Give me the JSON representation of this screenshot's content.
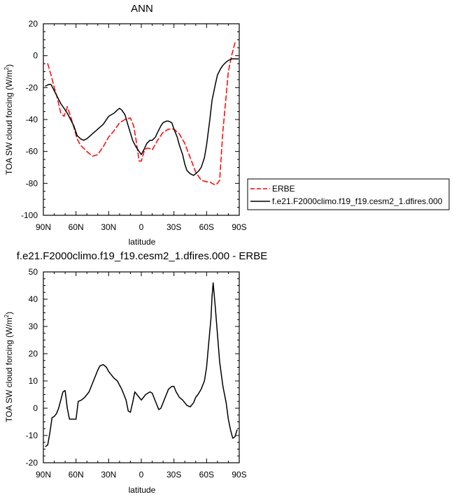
{
  "chart_data": [
    {
      "type": "line",
      "title": "ANN",
      "xlabel": "latitude",
      "ylabel_main": "TOA SW cloud forcing (W/m",
      "ylabel_sup": "2",
      "ylabel_close": ")",
      "xlim": [
        90,
        -90
      ],
      "ylim": [
        -100,
        20
      ],
      "xticks": [
        {
          "value": 90,
          "label": "90N"
        },
        {
          "value": 60,
          "label": "60N"
        },
        {
          "value": 30,
          "label": "30N"
        },
        {
          "value": 0,
          "label": "0"
        },
        {
          "value": -30,
          "label": "30S"
        },
        {
          "value": -60,
          "label": "60S"
        },
        {
          "value": -90,
          "label": "90S"
        }
      ],
      "yticks": [
        20,
        0,
        -20,
        -40,
        -60,
        -80,
        -100
      ],
      "grid": false,
      "legend_position": "right",
      "series": [
        {
          "name": "ERBE",
          "color": "#ff0000",
          "dash": "dashed",
          "x": [
            86,
            83,
            80,
            77,
            74,
            71,
            68,
            65,
            62,
            59,
            56,
            50,
            45,
            40,
            35,
            30,
            25,
            20,
            15,
            10,
            7,
            5,
            2,
            0,
            -3,
            -5,
            -7,
            -10,
            -15,
            -20,
            -25,
            -30,
            -35,
            -40,
            -45,
            -50,
            -55,
            -60,
            -63,
            -65,
            -68,
            -70,
            -72,
            -75,
            -78,
            -80,
            -83,
            -86,
            -88
          ],
          "y": [
            -5,
            -12,
            -20,
            -27,
            -36,
            -38,
            -32,
            -38,
            -45,
            -52,
            -56,
            -60,
            -63,
            -62,
            -57,
            -51,
            -47,
            -42,
            -40,
            -39,
            -44,
            -52,
            -66,
            -66,
            -59,
            -58,
            -58,
            -59,
            -53,
            -48,
            -46,
            -46,
            -49,
            -55,
            -64,
            -73,
            -78,
            -79,
            -79,
            -80,
            -81,
            -80,
            -78,
            -47,
            -25,
            -10,
            0,
            8,
            9
          ]
        },
        {
          "name": "f.e21.F2000climo.f19_f19.cesm2_1.dfires.000",
          "color": "#000000",
          "dash": "solid",
          "x": [
            88,
            85,
            83,
            80,
            77,
            74,
            71,
            68,
            65,
            62,
            59,
            56,
            53,
            50,
            45,
            40,
            35,
            30,
            25,
            22,
            20,
            18,
            15,
            12,
            8,
            5,
            2,
            0,
            -3,
            -5,
            -8,
            -10,
            -13,
            -15,
            -18,
            -20,
            -23,
            -25,
            -28,
            -30,
            -33,
            -35,
            -38,
            -40,
            -42,
            -45,
            -48,
            -50,
            -53,
            -55,
            -58,
            -60,
            -63,
            -65,
            -68,
            -70,
            -73,
            -75,
            -78,
            -80,
            -83,
            -86,
            -89
          ],
          "y": [
            -19,
            -18,
            -18,
            -22,
            -26,
            -30,
            -33,
            -36,
            -40,
            -44,
            -50,
            -52,
            -53,
            -52,
            -49,
            -46,
            -43,
            -38,
            -36,
            -34,
            -33,
            -34,
            -37,
            -44,
            -53,
            -57,
            -60,
            -62,
            -58,
            -55,
            -53,
            -53,
            -51,
            -48,
            -44,
            -42,
            -41,
            -41,
            -42,
            -46,
            -51,
            -56,
            -62,
            -68,
            -72,
            -74,
            -75,
            -74,
            -72,
            -70,
            -64,
            -56,
            -40,
            -28,
            -18,
            -12,
            -8,
            -6,
            -4,
            -3,
            -2,
            -2,
            -2
          ]
        }
      ]
    },
    {
      "type": "line",
      "title": "f.e21.F2000climo.f19_f19.cesm2_1.dfires.000 - ERBE",
      "xlabel": "latitude",
      "ylabel_main": "TOA SW cloud forcing (W/m",
      "ylabel_sup": "2",
      "ylabel_close": ")",
      "xlim": [
        90,
        -90
      ],
      "ylim": [
        -20,
        50
      ],
      "xticks": [
        {
          "value": 90,
          "label": "90N"
        },
        {
          "value": 60,
          "label": "60N"
        },
        {
          "value": 30,
          "label": "30N"
        },
        {
          "value": 0,
          "label": "0"
        },
        {
          "value": -30,
          "label": "30S"
        },
        {
          "value": -60,
          "label": "60S"
        },
        {
          "value": -90,
          "label": "90S"
        }
      ],
      "yticks": [
        50,
        40,
        30,
        20,
        10,
        0,
        -10,
        -20
      ],
      "grid": false,
      "series": [
        {
          "name": "",
          "color": "#000000",
          "dash": "solid",
          "x": [
            88,
            86,
            84,
            82,
            80,
            78,
            76,
            74,
            72,
            70,
            68,
            66,
            64,
            62,
            60,
            58,
            55,
            52,
            50,
            48,
            45,
            43,
            40,
            38,
            35,
            32,
            30,
            28,
            25,
            22,
            20,
            18,
            16,
            14,
            12,
            10,
            8,
            6,
            4,
            2,
            0,
            -2,
            -4,
            -6,
            -8,
            -10,
            -12,
            -14,
            -16,
            -18,
            -20,
            -22,
            -25,
            -28,
            -30,
            -32,
            -35,
            -38,
            -40,
            -42,
            -45,
            -48,
            -50,
            -52,
            -55,
            -58,
            -60,
            -62,
            -64,
            -65,
            -66,
            -68,
            -70,
            -72,
            -75,
            -78,
            -80,
            -82,
            -84,
            -86,
            -88
          ],
          "y": [
            -14,
            -13.5,
            -9,
            -3.5,
            -3,
            -2,
            0,
            3,
            6,
            6.5,
            0,
            -4,
            -4,
            -4,
            -4,
            2.5,
            3,
            4,
            5,
            6,
            9,
            11,
            14,
            15.5,
            16,
            15,
            13.5,
            12.5,
            11,
            10,
            8.5,
            7,
            5,
            3,
            -1,
            -1.5,
            2,
            6,
            5,
            4,
            3,
            4,
            5,
            5.5,
            6,
            5.5,
            3.5,
            1.5,
            -0.5,
            0,
            2,
            4,
            7,
            8,
            8,
            6,
            4,
            3,
            2,
            1,
            0.5,
            2,
            4,
            5,
            7,
            10,
            15,
            24,
            33,
            41,
            46,
            37,
            27,
            17,
            8,
            2,
            -4,
            -8,
            -11,
            -10.5,
            -8
          ]
        }
      ]
    }
  ]
}
